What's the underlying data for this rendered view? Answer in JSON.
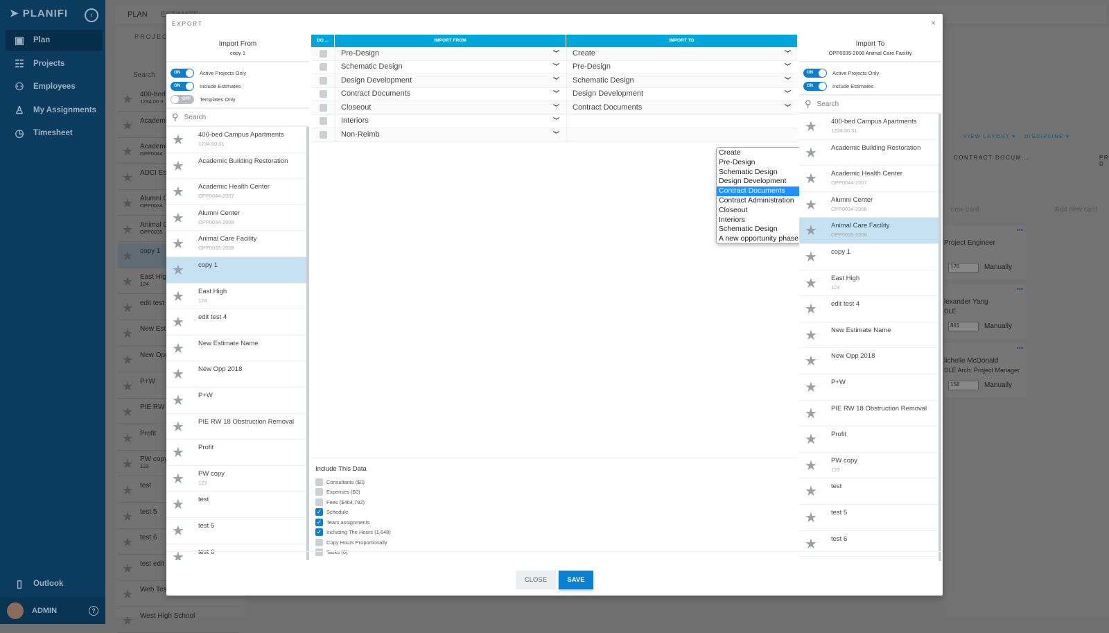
{
  "app": {
    "brand": "PLANIFI",
    "nav": [
      {
        "label": "Plan",
        "icon": "calendar-icon",
        "active": true
      },
      {
        "label": "Projects",
        "icon": "org-chart-icon"
      },
      {
        "label": "Employees",
        "icon": "people-icon"
      },
      {
        "label": "My Assignments",
        "icon": "person-icon"
      },
      {
        "label": "Timesheet",
        "icon": "clock-icon"
      }
    ],
    "outlook": "Outlook",
    "user": "ADMIN"
  },
  "background": {
    "tabs": [
      "PLAN",
      "ESTIMATE"
    ],
    "panel_title": "PROJECT",
    "search": "Search",
    "items": [
      {
        "name": "400-bed",
        "sub": "1234.00.0"
      },
      {
        "name": "Academi",
        "sub": ""
      },
      {
        "name": "Academi",
        "sub": "OPP0044"
      },
      {
        "name": "ADCI Es",
        "sub": ""
      },
      {
        "name": "Alumni C",
        "sub": "OPP0034"
      },
      {
        "name": "Animal C",
        "sub": "OPP0035"
      },
      {
        "name": "copy 1",
        "sub": ""
      },
      {
        "name": "East Hig",
        "sub": "124"
      },
      {
        "name": "edit test",
        "sub": ""
      },
      {
        "name": "New Est",
        "sub": ""
      },
      {
        "name": "New Opp",
        "sub": ""
      },
      {
        "name": "P+W",
        "sub": ""
      },
      {
        "name": "PIE RW",
        "sub": ""
      },
      {
        "name": "Profit",
        "sub": ""
      },
      {
        "name": "PW copy",
        "sub": "123"
      },
      {
        "name": "test",
        "sub": ""
      },
      {
        "name": "test 5",
        "sub": ""
      },
      {
        "name": "test 6",
        "sub": ""
      },
      {
        "name": "test edit",
        "sub": ""
      },
      {
        "name": "Web Tes",
        "sub": ""
      },
      {
        "name": "West High School",
        "sub": ""
      }
    ],
    "right": {
      "view_layout": "VIEW LAYOUT ▾",
      "discipline": "DISCIPLINE ▾",
      "phase1": "CONTRACT DOCUM...",
      "phase2": "PRE-D",
      "add_card": "Add new card",
      "new_card": "new card",
      "cards": [
        {
          "title": "Project Engineer",
          "sub": "",
          "hours": "176",
          "mode": "Manually"
        },
        {
          "title": "lexander Yang",
          "sub": "DLE",
          "hours": "881",
          "mode": "Manually"
        },
        {
          "title": "lichelle McDonald",
          "sub": "DLE Arch: Project Manager",
          "hours": "158",
          "mode": "Manually"
        }
      ]
    }
  },
  "modal": {
    "title": "EXPORT",
    "close_icon": "×",
    "import_from": {
      "title": "Import From",
      "subtitle": "copy 1",
      "toggles": [
        {
          "label": "Active Projects Only",
          "on": true
        },
        {
          "label": "Include Estimates",
          "on": true
        },
        {
          "label": "Templates Only",
          "on": false
        }
      ],
      "search_placeholder": "Search"
    },
    "import_to": {
      "title": "Import To",
      "subtitle": "OPP0035-2008 Animal Care Facility",
      "toggles": [
        {
          "label": "Active Projects Only",
          "on": true
        },
        {
          "label": "Include Estimates",
          "on": true
        }
      ],
      "search_placeholder": "Search"
    },
    "projects_from": [
      {
        "name": "400-bed Campus Apartments",
        "sub": "1234.00.01"
      },
      {
        "name": "Academic Building Restoration",
        "sub": ""
      },
      {
        "name": "Academic Health Center",
        "sub": "OPP0044-2007"
      },
      {
        "name": "Alumni Center",
        "sub": "OPP0034-2008"
      },
      {
        "name": "Animal Care Facility",
        "sub": "OPP0035-2008"
      },
      {
        "name": "copy 1",
        "sub": "",
        "selected": true
      },
      {
        "name": "East High",
        "sub": "124"
      },
      {
        "name": "edit test 4",
        "sub": ""
      },
      {
        "name": "New Estimate Name",
        "sub": ""
      },
      {
        "name": "New Opp 2018",
        "sub": ""
      },
      {
        "name": "P+W",
        "sub": ""
      },
      {
        "name": "PIE RW 18 Obstruction Removal",
        "sub": ""
      },
      {
        "name": "Profit",
        "sub": ""
      },
      {
        "name": "PW copy",
        "sub": "123"
      },
      {
        "name": "test",
        "sub": ""
      },
      {
        "name": "test 5",
        "sub": ""
      },
      {
        "name": "test 6",
        "sub": ""
      }
    ],
    "projects_to": [
      {
        "name": "400-bed Campus Apartments",
        "sub": "1234.00.01"
      },
      {
        "name": "Academic Building Restoration",
        "sub": ""
      },
      {
        "name": "Academic Health Center",
        "sub": "OPP0044-2007"
      },
      {
        "name": "Alumni Center",
        "sub": "OPP0034-2008"
      },
      {
        "name": "Animal Care Facility",
        "sub": "OPP0035-2008",
        "selected": true
      },
      {
        "name": "copy 1",
        "sub": ""
      },
      {
        "name": "East High",
        "sub": "124"
      },
      {
        "name": "edit test 4",
        "sub": ""
      },
      {
        "name": "New Estimate Name",
        "sub": ""
      },
      {
        "name": "New Opp 2018",
        "sub": ""
      },
      {
        "name": "P+W",
        "sub": ""
      },
      {
        "name": "PIE RW 18 Obstruction Removal",
        "sub": ""
      },
      {
        "name": "Profit",
        "sub": ""
      },
      {
        "name": "PW copy",
        "sub": "123"
      },
      {
        "name": "test",
        "sub": ""
      },
      {
        "name": "test 5",
        "sub": ""
      },
      {
        "name": "test 6",
        "sub": ""
      }
    ],
    "mapping": {
      "headers": [
        "DO ...",
        "IMPORT FROM",
        "IMPORT TO"
      ],
      "rows": [
        {
          "from": "Pre-Design",
          "to": "Create"
        },
        {
          "from": "Schematic Design",
          "to": "Pre-Design"
        },
        {
          "from": "Design Development",
          "to": "Schematic Design"
        },
        {
          "from": "Contract Documents",
          "to": "Design Development"
        },
        {
          "from": "Closeout",
          "to": "Contract Documents"
        },
        {
          "from": "Interiors",
          "to": ""
        },
        {
          "from": "Non-Reimb",
          "to": ""
        }
      ],
      "dropdown_options": [
        "Create",
        "Pre-Design",
        "Schematic Design",
        "Design Development",
        "Contract Documents",
        "Contract Administration",
        "Closeout",
        "Interiors",
        "Schematic Design",
        "A new opportunity phase"
      ],
      "dropdown_highlighted": "Contract Documents"
    },
    "include": {
      "title": "Include This Data",
      "items": [
        {
          "label": "Consultants ($0)",
          "checked": false
        },
        {
          "label": "Expenses ($0)",
          "checked": false
        },
        {
          "label": "Fees ($464,792)",
          "checked": false
        },
        {
          "label": "Schedule",
          "checked": true
        },
        {
          "label": "Team assignments",
          "checked": true
        },
        {
          "label": "Including The Hours (1,648)",
          "checked": true
        },
        {
          "label": "Copy Hours Proportionally",
          "checked": false
        },
        {
          "label": "Tasks (0)",
          "checked": false
        }
      ]
    },
    "buttons": {
      "close": "CLOSE",
      "save": "SAVE"
    }
  },
  "colors": {
    "accent": "#0b7fd1",
    "header": "#00a6d9",
    "sidebar": "#0b3b5e",
    "selected_row": "#c5e1f2"
  }
}
